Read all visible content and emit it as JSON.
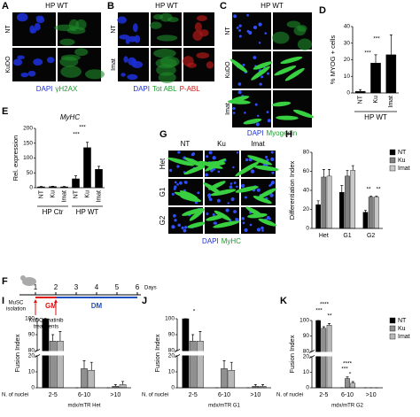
{
  "figure": {
    "A": {
      "label": "A",
      "title": "HP WT",
      "rows": [
        "NT",
        "KuDO"
      ],
      "caption": [
        "DAPI",
        "γH2AX"
      ]
    },
    "B": {
      "label": "B",
      "title": "HP WT",
      "rows": [
        "NT",
        "Imat"
      ],
      "caption": [
        "DAPI",
        "Tot ABL",
        "P-ABL"
      ]
    },
    "C": {
      "label": "C",
      "title": "HP WT",
      "rows": [
        "NT",
        "KuDO",
        "Imat"
      ],
      "caption": [
        "DAPI",
        "Myogenin"
      ]
    },
    "F": {
      "label": "F",
      "days": [
        1,
        2,
        3,
        4,
        5,
        6
      ],
      "unit": "Days",
      "isolation": [
        "MuSC",
        "isolation"
      ],
      "gm": "GM",
      "dm": "DM",
      "treatment": [
        "KuDO/Imatinib",
        "treatments"
      ]
    },
    "G": {
      "label": "G",
      "columns": [
        "NT",
        "Ku",
        "Imat"
      ],
      "rows": [
        "Het",
        "G1",
        "G2"
      ],
      "caption": [
        "DAPI",
        "MyHC"
      ]
    }
  },
  "chart_data": [
    {
      "type": "bar",
      "label": "D",
      "ylabel": "% MYOG + cells",
      "categories": [
        "NT",
        "Ku",
        "Imat"
      ],
      "values": [
        1,
        18,
        23
      ],
      "errors": [
        1,
        5,
        12
      ],
      "color": "#000000",
      "group_labels": [
        "HP WT"
      ],
      "ylim": [
        0,
        40
      ],
      "yticks": [
        0,
        10,
        20,
        30,
        40
      ],
      "annotations": [
        "***",
        "***"
      ]
    },
    {
      "type": "bar",
      "label": "E",
      "title": "MyHC",
      "ylabel": "Rel. expression",
      "categories": [
        "NT",
        "Ku",
        "Imat",
        "NT",
        "Ku",
        "Imat"
      ],
      "values": [
        3,
        4,
        3,
        30,
        135,
        62
      ],
      "errors": [
        1,
        1,
        1,
        10,
        18,
        10
      ],
      "color": "#000000",
      "group_labels": [
        "HP Ctr",
        "HP WT"
      ],
      "ylim": [
        0,
        200
      ],
      "yticks": [
        0,
        50,
        100,
        150,
        200
      ],
      "annotations": [
        "***",
        "***"
      ]
    },
    {
      "type": "bar",
      "label": "H",
      "ylabel": "Differentiation Index",
      "categories": [
        "Het",
        "G1",
        "G2"
      ],
      "series": [
        {
          "name": "NT",
          "color": "#000000",
          "values": [
            25,
            38,
            17
          ],
          "errors": [
            4,
            7,
            2
          ]
        },
        {
          "name": "Ku",
          "color": "#808080",
          "values": [
            54,
            55,
            33
          ],
          "errors": [
            8,
            6,
            1
          ]
        },
        {
          "name": "Imat",
          "color": "#c8c8c8",
          "values": [
            55,
            61,
            33
          ],
          "errors": [
            7,
            5,
            1
          ]
        }
      ],
      "ylim": [
        0,
        80
      ],
      "yticks": [
        0,
        20,
        40,
        60,
        80
      ],
      "legend": "upper right",
      "annotations": [
        "**",
        "**"
      ]
    },
    {
      "type": "bar",
      "label": "I",
      "ylabel": "Fusion Index",
      "xcaption": "N. of nuclei",
      "xlabel": "mdx/mTR Het",
      "categories": [
        "2-5",
        "6-10",
        ">10"
      ],
      "series": [
        {
          "color": "#000000",
          "values": [
            100,
            0,
            0
          ],
          "errors": [
            0,
            0,
            0
          ]
        },
        {
          "color": "#909090",
          "values": [
            86,
            12,
            1
          ],
          "errors": [
            4,
            5,
            1
          ]
        },
        {
          "color": "#b8b8b8",
          "values": [
            86,
            11,
            2
          ],
          "errors": [
            6,
            5,
            2
          ]
        }
      ],
      "ylim": [
        0,
        100
      ],
      "ybreak": [
        20,
        80
      ],
      "yticks": [
        0,
        10,
        20,
        80,
        90,
        100
      ]
    },
    {
      "type": "bar",
      "label": "J",
      "ylabel": "Fusion Index",
      "xcaption": "N. of nuclei",
      "xlabel": "mdx/mTR G1",
      "categories": [
        "2-5",
        "6-10",
        ">10"
      ],
      "series": [
        {
          "color": "#000000",
          "values": [
            100,
            0,
            0
          ],
          "errors": [
            0,
            0,
            0
          ]
        },
        {
          "color": "#909090",
          "values": [
            86,
            12,
            1
          ],
          "errors": [
            4,
            5,
            1
          ]
        },
        {
          "color": "#b8b8b8",
          "values": [
            86,
            11,
            1
          ],
          "errors": [
            6,
            5,
            1
          ]
        }
      ],
      "ylim": [
        0,
        100
      ],
      "ybreak": [
        20,
        80
      ],
      "yticks": [
        0,
        10,
        20,
        80,
        90,
        100
      ],
      "annotations": [
        "*"
      ]
    },
    {
      "type": "bar",
      "label": "K",
      "ylabel": "Fusion Index",
      "xcaption": "N. of nuclei",
      "xlabel": "mdx/mTR G2",
      "categories": [
        "2-5",
        "6-10",
        ">10"
      ],
      "series": [
        {
          "name": "NT",
          "color": "#000000",
          "values": [
            100,
            0,
            0
          ],
          "errors": [
            0,
            0,
            0
          ]
        },
        {
          "name": "Ku",
          "color": "#909090",
          "values": [
            95,
            6,
            0
          ],
          "errors": [
            1,
            1,
            0
          ]
        },
        {
          "name": "Imat",
          "color": "#b8b8b8",
          "values": [
            97,
            3,
            0
          ],
          "errors": [
            1,
            1,
            0
          ]
        }
      ],
      "ylim": [
        0,
        100
      ],
      "ybreak": [
        20,
        80
      ],
      "yticks": [
        0,
        10,
        20,
        80,
        90,
        100
      ],
      "legend": "upper right",
      "annotations": [
        "****",
        "***",
        "**",
        "****",
        "***",
        "*"
      ]
    }
  ]
}
